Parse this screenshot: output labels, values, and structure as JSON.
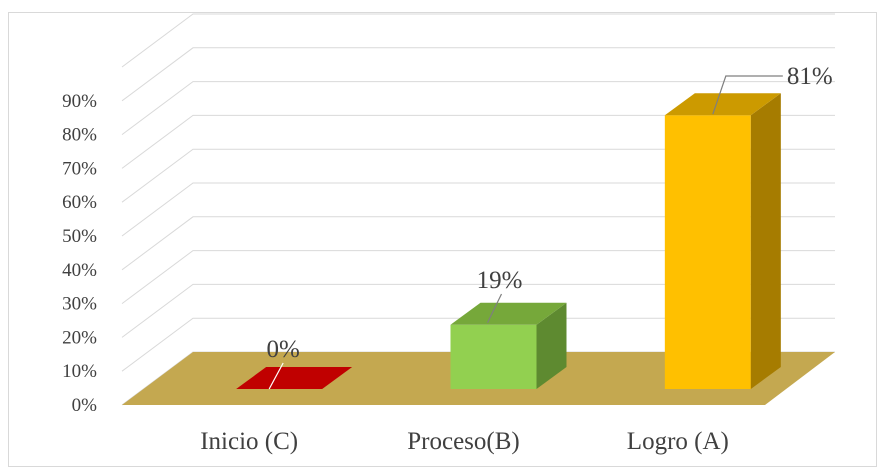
{
  "chart_data": {
    "type": "bar",
    "style": "3d",
    "categories": [
      "Inicio (C)",
      "Proceso(B)",
      "Logro (A)"
    ],
    "values": [
      0,
      19,
      81
    ],
    "data_labels": [
      "0%",
      "19%",
      "81%"
    ],
    "yticks": [
      "0%",
      "10%",
      "20%",
      "30%",
      "40%",
      "50%",
      "60%",
      "70%",
      "80%",
      "90%"
    ],
    "ylim": [
      0,
      90
    ],
    "unit": "%",
    "grid": true,
    "legend": "none",
    "colors": {
      "bars": [
        "#c00000",
        "#92d050",
        "#ffc000"
      ],
      "bar_tops": [
        "#d01010",
        "#76a83a",
        "#cc9a00"
      ],
      "bar_sides": [
        "#7a0000",
        "#5e8a30",
        "#a67c00"
      ],
      "floor": "#c4a850",
      "gridlines": "#d9d9d9",
      "text": "#404040"
    }
  }
}
